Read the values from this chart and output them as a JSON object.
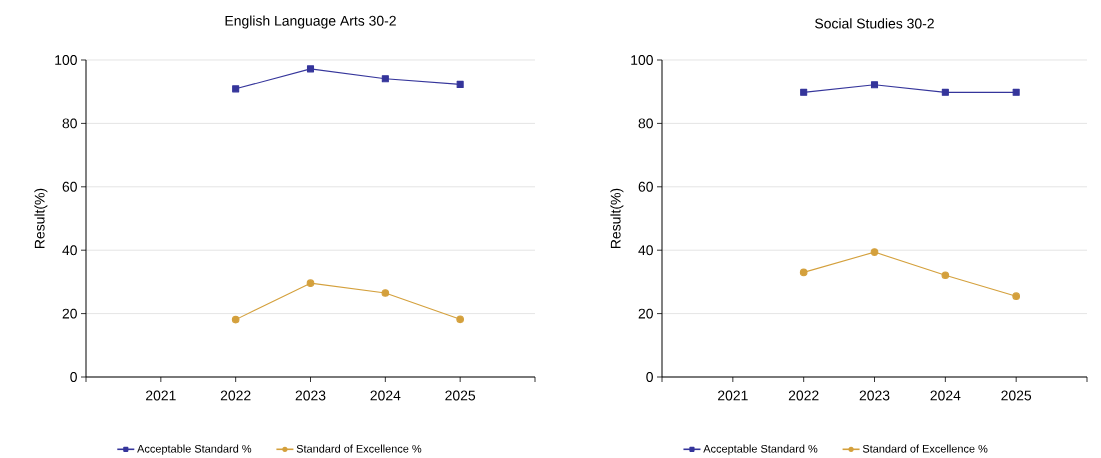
{
  "chart_data": [
    {
      "type": "line",
      "title": "English Language Arts 30-2",
      "ylabel": "Result(%)",
      "categories": [
        "2021",
        "2022",
        "2023",
        "2024",
        "2025"
      ],
      "series": [
        {
          "name": "Acceptable Standard %",
          "color": "#35359b",
          "marker": "square",
          "values": [
            null,
            90.9,
            97.2,
            94.1,
            92.3
          ]
        },
        {
          "name": "Standard of Excellence %",
          "color": "#d4a03c",
          "marker": "circle",
          "values": [
            null,
            18.1,
            29.6,
            26.5,
            18.2
          ]
        }
      ],
      "ylim": [
        0,
        100
      ],
      "yticks": [
        0,
        20,
        40,
        60,
        80,
        100
      ],
      "grid": "y",
      "legend": "bottom",
      "line_style": "solid"
    },
    {
      "type": "line",
      "title": "Social Studies 30-2",
      "ylabel": "Result(%)",
      "categories": [
        "2021",
        "2022",
        "2023",
        "2024",
        "2025"
      ],
      "series": [
        {
          "name": "Acceptable Standard %",
          "color": "#35359b",
          "marker": "square",
          "values": [
            null,
            89.8,
            92.2,
            89.8,
            89.8
          ]
        },
        {
          "name": "Standard of Excellence %",
          "color": "#d4a03c",
          "marker": "circle",
          "values": [
            null,
            33.0,
            39.4,
            32.1,
            25.5
          ]
        }
      ],
      "ylim": [
        0,
        100
      ],
      "yticks": [
        0,
        20,
        40,
        60,
        80,
        100
      ],
      "grid": "y",
      "legend": "bottom",
      "line_style": "solid"
    }
  ]
}
